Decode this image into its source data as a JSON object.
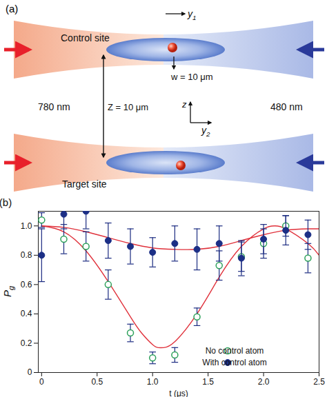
{
  "diagram": {
    "label": "(a)",
    "control_site": "Control site",
    "target_site": "Target site",
    "y1": {
      "text": "y",
      "subscript": "1"
    },
    "w_label": "w = 10 μm",
    "z_label": "Z = 10 μm",
    "left_beam": "780 nm",
    "right_beam": "480 nm",
    "z_axis": "z",
    "y2": {
      "text": "y",
      "subscript": "2"
    }
  },
  "chart_data": {
    "type": "scatter",
    "panel_label": "(b)",
    "x_label": "t (μs)",
    "y_label": {
      "text": "P",
      "subscript": "g"
    },
    "xlim": [
      -0.03,
      2.5
    ],
    "ylim": [
      0,
      1.1
    ],
    "xticks": [
      0,
      0.5,
      {
        "value": 1,
        "label": "1.0"
      },
      1.5,
      {
        "value": 2,
        "label": "2.0"
      },
      2.5
    ],
    "yticks": [
      0,
      0.2,
      0.4,
      0.6,
      0.8,
      {
        "value": 1,
        "label": "1.0"
      }
    ],
    "legend": "bottom-right",
    "series": [
      {
        "name": "No control atom",
        "color": "#2ca05a",
        "marker": "open circle",
        "x": [
          0,
          0.2,
          0.4,
          0.6,
          0.8,
          1.0,
          1.2,
          1.4,
          1.6,
          1.8,
          2.0,
          2.2,
          2.4
        ],
        "values": [
          1.04,
          0.91,
          0.86,
          0.6,
          0.27,
          0.1,
          0.12,
          0.38,
          0.73,
          0.79,
          0.88,
          1.0,
          0.78
        ],
        "errors": [
          0.05,
          0.1,
          0.1,
          0.1,
          0.06,
          0.04,
          0.05,
          0.06,
          0.1,
          0.1,
          0.1,
          0.07,
          0.1
        ]
      },
      {
        "name": "With control atom",
        "color": "#1c2f86",
        "marker": "filled circle",
        "x": [
          0,
          0.2,
          0.4,
          0.6,
          0.8,
          1.0,
          1.2,
          1.4,
          1.6,
          1.8,
          2.0,
          2.2,
          2.4
        ],
        "values": [
          0.8,
          1.08,
          1.1,
          0.9,
          0.86,
          0.82,
          0.88,
          0.84,
          0.88,
          0.78,
          0.91,
          0.97,
          0.94
        ],
        "errors": [
          0.18,
          0.1,
          0.12,
          0.12,
          0.12,
          0.1,
          0.12,
          0.14,
          0.12,
          0.12,
          0.1,
          0.1,
          0.1
        ]
      }
    ],
    "fits": [
      {
        "type": "line",
        "color": "#e0313b",
        "x": [
          0,
          0.2,
          0.4,
          0.6,
          0.8,
          0.9,
          1.0,
          1.05,
          1.1,
          1.2,
          1.4,
          1.6,
          1.8,
          2.0,
          2.1,
          2.2,
          2.4,
          2.5
        ],
        "values": [
          1.0,
          0.96,
          0.83,
          0.62,
          0.38,
          0.27,
          0.19,
          0.17,
          0.17,
          0.21,
          0.4,
          0.65,
          0.86,
          0.98,
          1.0,
          0.98,
          0.88,
          0.8
        ]
      },
      {
        "type": "line",
        "color": "#e0313b",
        "x": [
          0,
          0.2,
          0.4,
          0.6,
          0.8,
          1.0,
          1.2,
          1.4,
          1.6,
          1.8,
          2.0,
          2.2,
          2.4,
          2.5
        ],
        "values": [
          1.0,
          0.99,
          0.96,
          0.92,
          0.88,
          0.85,
          0.84,
          0.84,
          0.86,
          0.9,
          0.94,
          0.97,
          0.98,
          0.98
        ]
      }
    ]
  }
}
